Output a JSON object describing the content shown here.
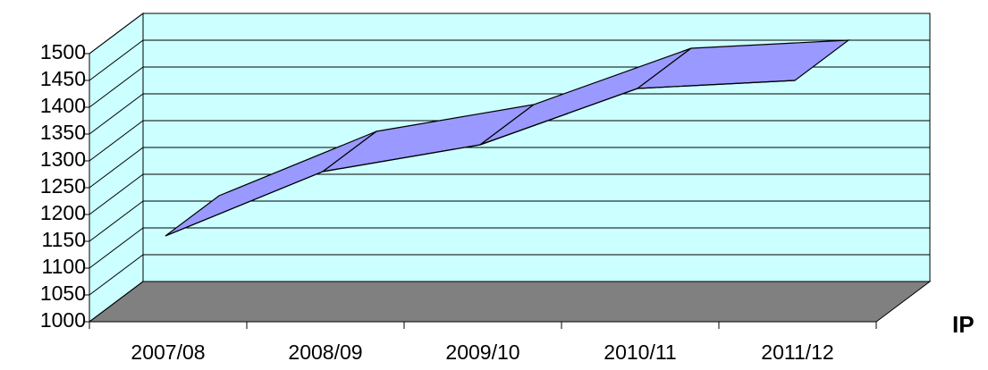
{
  "chart_data": {
    "type": "line3d",
    "categories": [
      "2007/08",
      "2008/09",
      "2009/10",
      "2010/11",
      "2011/12"
    ],
    "series": [
      {
        "name": "IP",
        "color": "#9999ff",
        "values": [
          1160,
          1280,
          1330,
          1435,
          1450
        ]
      }
    ],
    "ylim": [
      1000,
      1500
    ],
    "yticks": [
      1000,
      1050,
      1100,
      1150,
      1200,
      1250,
      1300,
      1350,
      1400,
      1450,
      1500
    ],
    "grid": true,
    "legend": "right"
  }
}
